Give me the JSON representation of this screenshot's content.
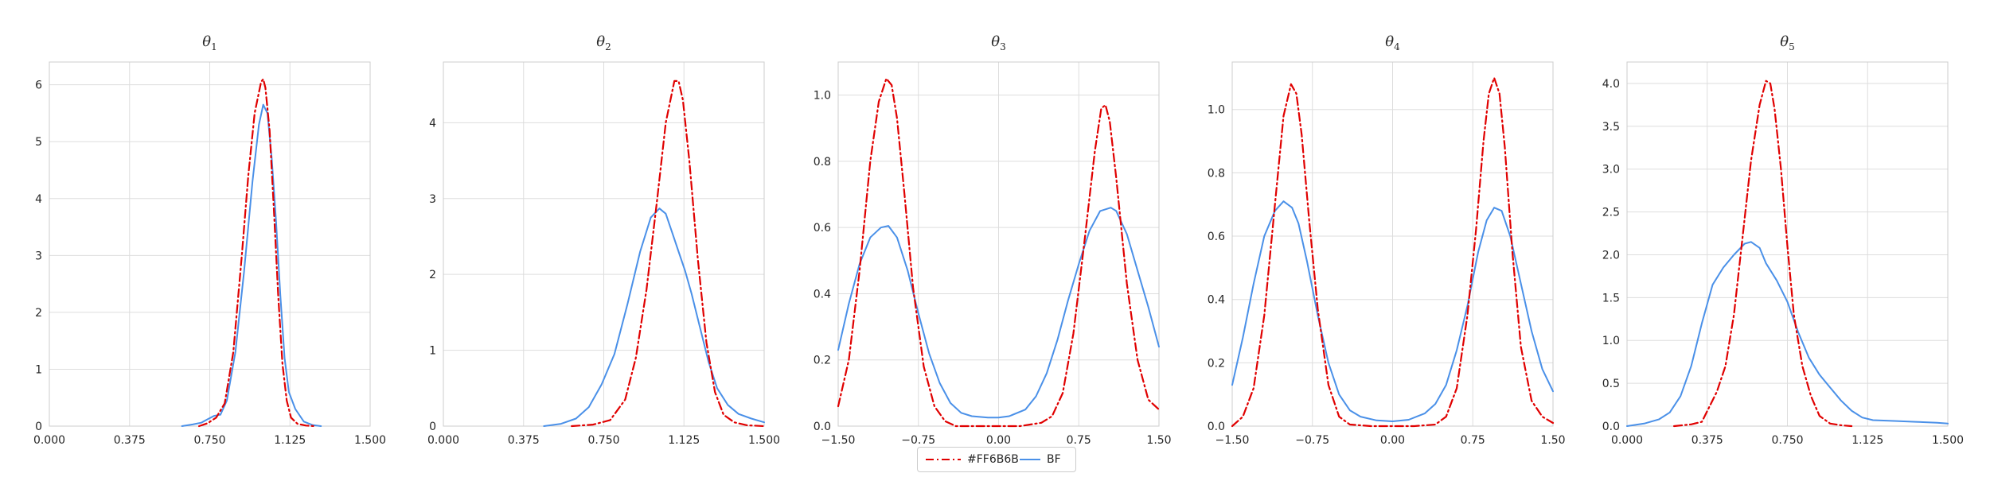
{
  "figure": {
    "legend": [
      {
        "label": "#FF6B6B",
        "color": "#e00000",
        "dash": "10,4,2,4"
      },
      {
        "label": "BF",
        "color": "#4a90e8",
        "dash": ""
      }
    ]
  },
  "chart_data": [
    {
      "type": "line",
      "title": "θ₁",
      "title_base": "θ",
      "title_sub": "1",
      "xlim": [
        0,
        1.5
      ],
      "ylim": [
        0,
        6.4
      ],
      "xticks": [
        0.0,
        0.375,
        0.75,
        1.125,
        1.5
      ],
      "xtick_labels": [
        "0.000",
        "0.375",
        "0.750",
        "1.125",
        "1.500"
      ],
      "yticks": [
        0,
        1,
        2,
        3,
        4,
        5,
        6
      ],
      "ytick_labels": [
        "0",
        "1",
        "2",
        "3",
        "4",
        "5",
        "6"
      ],
      "grid": true,
      "series": [
        {
          "name": "#FF6B6B",
          "x": [
            0.7,
            0.74,
            0.78,
            0.82,
            0.86,
            0.9,
            0.93,
            0.96,
            0.99,
            1.0,
            1.01,
            1.03,
            1.05,
            1.07,
            1.09,
            1.11,
            1.13,
            1.16,
            1.2,
            1.24
          ],
          "y": [
            0.0,
            0.05,
            0.15,
            0.4,
            1.3,
            3.0,
            4.4,
            5.5,
            6.05,
            6.1,
            5.95,
            5.2,
            3.8,
            2.3,
            1.1,
            0.45,
            0.15,
            0.04,
            0.01,
            0.0
          ]
        },
        {
          "name": "BF",
          "x": [
            0.62,
            0.67,
            0.71,
            0.74,
            0.77,
            0.8,
            0.83,
            0.87,
            0.91,
            0.95,
            0.98,
            1.0,
            1.02,
            1.04,
            1.06,
            1.08,
            1.1,
            1.12,
            1.15,
            1.19,
            1.23,
            1.27
          ],
          "y": [
            0.0,
            0.03,
            0.06,
            0.12,
            0.18,
            0.2,
            0.45,
            1.3,
            2.7,
            4.3,
            5.3,
            5.65,
            5.5,
            4.7,
            3.6,
            2.3,
            1.2,
            0.6,
            0.3,
            0.08,
            0.02,
            0.0
          ]
        }
      ]
    },
    {
      "type": "line",
      "title": "θ₂",
      "title_base": "θ",
      "title_sub": "2",
      "xlim": [
        0,
        1.5
      ],
      "ylim": [
        0,
        4.8
      ],
      "xticks": [
        0.0,
        0.375,
        0.75,
        1.125,
        1.5
      ],
      "xtick_labels": [
        "0.000",
        "0.375",
        "0.750",
        "1.125",
        "1.500"
      ],
      "yticks": [
        0,
        1,
        2,
        3,
        4
      ],
      "ytick_labels": [
        "0",
        "1",
        "2",
        "3",
        "4"
      ],
      "grid": true,
      "series": [
        {
          "name": "#FF6B6B",
          "x": [
            0.6,
            0.7,
            0.78,
            0.85,
            0.9,
            0.95,
            1.0,
            1.04,
            1.08,
            1.1,
            1.12,
            1.15,
            1.19,
            1.23,
            1.27,
            1.31,
            1.36,
            1.42,
            1.5
          ],
          "y": [
            0.0,
            0.02,
            0.08,
            0.35,
            0.9,
            1.8,
            3.0,
            4.0,
            4.55,
            4.55,
            4.3,
            3.5,
            2.2,
            1.1,
            0.45,
            0.15,
            0.05,
            0.01,
            0.0
          ]
        },
        {
          "name": "BF",
          "x": [
            0.47,
            0.55,
            0.62,
            0.68,
            0.74,
            0.8,
            0.86,
            0.92,
            0.97,
            1.01,
            1.04,
            1.07,
            1.1,
            1.13,
            1.16,
            1.2,
            1.24,
            1.28,
            1.33,
            1.38,
            1.44,
            1.5
          ],
          "y": [
            0.0,
            0.03,
            0.1,
            0.25,
            0.55,
            0.95,
            1.6,
            2.3,
            2.75,
            2.87,
            2.8,
            2.55,
            2.3,
            2.05,
            1.75,
            1.3,
            0.85,
            0.5,
            0.28,
            0.16,
            0.1,
            0.05
          ]
        }
      ]
    },
    {
      "type": "line",
      "title": "θ₃",
      "title_base": "θ",
      "title_sub": "3",
      "xlim": [
        -1.5,
        1.5
      ],
      "ylim": [
        0,
        1.1
      ],
      "xticks": [
        -1.5,
        -0.75,
        0.0,
        0.75,
        1.5
      ],
      "xtick_labels": [
        "−1.50",
        "−0.75",
        "0.00",
        "0.75",
        "1.50"
      ],
      "yticks": [
        0,
        0.2,
        0.4,
        0.6,
        0.8,
        1.0
      ],
      "ytick_labels": [
        "0.0",
        "0.2",
        "0.4",
        "0.6",
        "0.8",
        "1.0"
      ],
      "grid": true,
      "series": [
        {
          "name": "#FF6B6B",
          "x": [
            -1.5,
            -1.4,
            -1.3,
            -1.2,
            -1.12,
            -1.05,
            -1.0,
            -0.95,
            -0.88,
            -0.8,
            -0.7,
            -0.6,
            -0.5,
            -0.4,
            -0.2,
            0.0,
            0.2,
            0.4,
            0.5,
            0.6,
            0.7,
            0.8,
            0.9,
            0.96,
            1.0,
            1.04,
            1.1,
            1.2,
            1.3,
            1.4,
            1.5
          ],
          "y": [
            0.06,
            0.2,
            0.47,
            0.8,
            0.98,
            1.05,
            1.03,
            0.93,
            0.7,
            0.42,
            0.18,
            0.06,
            0.015,
            0.0,
            0.0,
            0.0,
            0.0,
            0.01,
            0.03,
            0.1,
            0.28,
            0.55,
            0.83,
            0.96,
            0.97,
            0.92,
            0.75,
            0.43,
            0.2,
            0.08,
            0.05
          ]
        },
        {
          "name": "BF",
          "x": [
            -1.5,
            -1.4,
            -1.3,
            -1.2,
            -1.1,
            -1.03,
            -0.95,
            -0.85,
            -0.75,
            -0.65,
            -0.55,
            -0.45,
            -0.35,
            -0.25,
            -0.1,
            0.0,
            0.1,
            0.25,
            0.35,
            0.45,
            0.55,
            0.65,
            0.75,
            0.85,
            0.95,
            1.05,
            1.1,
            1.2,
            1.3,
            1.4,
            1.5
          ],
          "y": [
            0.23,
            0.37,
            0.49,
            0.57,
            0.6,
            0.605,
            0.57,
            0.47,
            0.34,
            0.22,
            0.13,
            0.07,
            0.04,
            0.03,
            0.026,
            0.026,
            0.03,
            0.05,
            0.09,
            0.16,
            0.26,
            0.38,
            0.49,
            0.59,
            0.65,
            0.66,
            0.65,
            0.58,
            0.47,
            0.36,
            0.24
          ]
        }
      ]
    },
    {
      "type": "line",
      "title": "θ₄",
      "title_base": "θ",
      "title_sub": "4",
      "xlim": [
        -1.5,
        1.5
      ],
      "ylim": [
        0,
        1.15
      ],
      "xticks": [
        -1.5,
        -0.75,
        0.0,
        0.75,
        1.5
      ],
      "xtick_labels": [
        "−1.50",
        "−0.75",
        "0.00",
        "0.75",
        "1.50"
      ],
      "yticks": [
        0,
        0.2,
        0.4,
        0.6,
        0.8,
        1.0
      ],
      "ytick_labels": [
        "0.0",
        "0.2",
        "0.4",
        "0.6",
        "0.8",
        "1.0"
      ],
      "grid": true,
      "series": [
        {
          "name": "#FF6B6B",
          "x": [
            -1.5,
            -1.4,
            -1.3,
            -1.2,
            -1.1,
            -1.02,
            -0.95,
            -0.9,
            -0.85,
            -0.78,
            -0.7,
            -0.6,
            -0.5,
            -0.4,
            -0.2,
            0.0,
            0.2,
            0.4,
            0.5,
            0.6,
            0.7,
            0.78,
            0.85,
            0.9,
            0.95,
            1.0,
            1.05,
            1.12,
            1.2,
            1.3,
            1.4,
            1.5
          ],
          "y": [
            0.0,
            0.03,
            0.12,
            0.35,
            0.7,
            0.98,
            1.08,
            1.05,
            0.92,
            0.65,
            0.37,
            0.13,
            0.03,
            0.005,
            0.0,
            0.0,
            0.0,
            0.005,
            0.03,
            0.12,
            0.35,
            0.62,
            0.9,
            1.05,
            1.1,
            1.05,
            0.88,
            0.55,
            0.25,
            0.08,
            0.03,
            0.01
          ]
        },
        {
          "name": "BF",
          "x": [
            -1.5,
            -1.4,
            -1.3,
            -1.2,
            -1.1,
            -1.02,
            -0.94,
            -0.88,
            -0.8,
            -0.7,
            -0.6,
            -0.5,
            -0.4,
            -0.3,
            -0.15,
            0.0,
            0.15,
            0.3,
            0.4,
            0.5,
            0.6,
            0.7,
            0.8,
            0.88,
            0.95,
            1.02,
            1.1,
            1.2,
            1.3,
            1.4,
            1.5
          ],
          "y": [
            0.13,
            0.28,
            0.45,
            0.6,
            0.68,
            0.71,
            0.69,
            0.64,
            0.52,
            0.35,
            0.2,
            0.1,
            0.05,
            0.03,
            0.018,
            0.015,
            0.02,
            0.04,
            0.07,
            0.13,
            0.24,
            0.38,
            0.55,
            0.65,
            0.69,
            0.68,
            0.6,
            0.45,
            0.3,
            0.18,
            0.11
          ]
        }
      ]
    },
    {
      "type": "line",
      "title": "θ₅",
      "title_base": "θ",
      "title_sub": "5",
      "xlim": [
        0,
        1.5
      ],
      "ylim": [
        0,
        4.25
      ],
      "xticks": [
        0.0,
        0.375,
        0.75,
        1.125,
        1.5
      ],
      "xtick_labels": [
        "0.000",
        "0.375",
        "0.750",
        "1.125",
        "1.500"
      ],
      "yticks": [
        0,
        0.5,
        1.0,
        1.5,
        2.0,
        2.5,
        3.0,
        3.5,
        4.0
      ],
      "ytick_labels": [
        "0.0",
        "0.5",
        "1.0",
        "1.5",
        "2.0",
        "2.5",
        "3.0",
        "3.5",
        "4.0"
      ],
      "grid": true,
      "series": [
        {
          "name": "#FF6B6B",
          "x": [
            0.22,
            0.3,
            0.35,
            0.38,
            0.42,
            0.46,
            0.5,
            0.54,
            0.58,
            0.62,
            0.65,
            0.67,
            0.69,
            0.72,
            0.75,
            0.78,
            0.82,
            0.86,
            0.9,
            0.95,
            1.0,
            1.05
          ],
          "y": [
            0.0,
            0.02,
            0.05,
            0.2,
            0.4,
            0.7,
            1.3,
            2.2,
            3.1,
            3.75,
            4.03,
            4.0,
            3.7,
            3.0,
            2.1,
            1.3,
            0.7,
            0.35,
            0.12,
            0.03,
            0.01,
            0.0
          ]
        },
        {
          "name": "BF",
          "x": [
            0.0,
            0.08,
            0.15,
            0.2,
            0.25,
            0.3,
            0.35,
            0.4,
            0.45,
            0.5,
            0.55,
            0.58,
            0.62,
            0.65,
            0.7,
            0.75,
            0.8,
            0.85,
            0.9,
            0.95,
            1.0,
            1.05,
            1.1,
            1.15,
            1.25,
            1.35,
            1.45,
            1.5
          ],
          "y": [
            0.0,
            0.03,
            0.08,
            0.16,
            0.35,
            0.7,
            1.2,
            1.65,
            1.85,
            2.0,
            2.13,
            2.15,
            2.08,
            1.9,
            1.7,
            1.45,
            1.1,
            0.8,
            0.6,
            0.45,
            0.3,
            0.18,
            0.1,
            0.07,
            0.06,
            0.05,
            0.04,
            0.03
          ]
        }
      ]
    }
  ]
}
